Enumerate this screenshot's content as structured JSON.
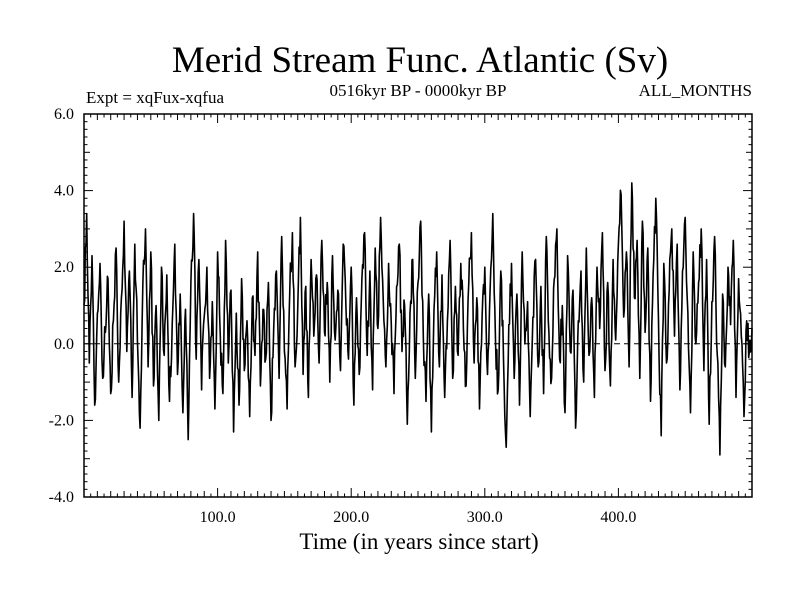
{
  "chart_data": {
    "type": "line",
    "title": "Merid Stream Func. Atlantic (Sv)",
    "subtitle_left": "Expt = xqFux-xqfua",
    "subtitle_center": "0516kyr BP - 0000kyr BP",
    "subtitle_right": "ALL_MONTHS",
    "xlabel": "Time (in years since start)",
    "ylabel": "",
    "xlim": [
      0,
      500
    ],
    "ylim": [
      -4.0,
      6.0
    ],
    "x_ticks": [
      100,
      200,
      300,
      400
    ],
    "x_tick_labels": [
      "100.0",
      "200.0",
      "300.0",
      "400.0"
    ],
    "y_ticks": [
      -4,
      -2,
      0,
      2,
      4,
      6
    ],
    "y_tick_labels": [
      "-4.0",
      "-2.0",
      "0.0",
      "2.0",
      "4.0",
      "6.0"
    ],
    "reference_line": 0.0,
    "anchors": [
      [
        0,
        1.0
      ],
      [
        2,
        3.4
      ],
      [
        4,
        -0.5
      ],
      [
        6,
        2.3
      ],
      [
        8,
        -1.6
      ],
      [
        10,
        0.8
      ],
      [
        12,
        2.1
      ],
      [
        14,
        -0.9
      ],
      [
        16,
        0.3
      ],
      [
        18,
        1.7
      ],
      [
        20,
        -1.3
      ],
      [
        22,
        0.6
      ],
      [
        24,
        2.5
      ],
      [
        26,
        -1.0
      ],
      [
        28,
        1.2
      ],
      [
        30,
        3.2
      ],
      [
        32,
        -0.2
      ],
      [
        34,
        1.9
      ],
      [
        36,
        -1.4
      ],
      [
        38,
        2.6
      ],
      [
        40,
        0.1
      ],
      [
        42,
        -2.2
      ],
      [
        44,
        1.5
      ],
      [
        46,
        3.0
      ],
      [
        48,
        -0.6
      ],
      [
        50,
        2.4
      ],
      [
        52,
        -1.1
      ],
      [
        54,
        1.0
      ],
      [
        56,
        -2.0
      ],
      [
        58,
        2.0
      ],
      [
        60,
        -0.3
      ],
      [
        62,
        1.8
      ],
      [
        64,
        -1.5
      ],
      [
        66,
        0.5
      ],
      [
        68,
        2.6
      ],
      [
        70,
        -0.8
      ],
      [
        72,
        1.3
      ],
      [
        74,
        -1.8
      ],
      [
        76,
        0.9
      ],
      [
        78,
        -2.5
      ],
      [
        80,
        1.6
      ],
      [
        82,
        3.4
      ],
      [
        84,
        -0.4
      ],
      [
        86,
        2.2
      ],
      [
        88,
        -1.2
      ],
      [
        90,
        0.7
      ],
      [
        92,
        2.0
      ],
      [
        94,
        -0.9
      ],
      [
        96,
        1.1
      ],
      [
        98,
        -1.7
      ],
      [
        100,
        2.4
      ],
      [
        102,
        0.2
      ],
      [
        104,
        -1.3
      ],
      [
        106,
        2.7
      ],
      [
        108,
        -0.5
      ],
      [
        110,
        1.4
      ],
      [
        112,
        -2.3
      ],
      [
        114,
        0.8
      ],
      [
        116,
        -1.6
      ],
      [
        118,
        1.7
      ],
      [
        120,
        -0.7
      ],
      [
        122,
        0.6
      ],
      [
        124,
        -1.9
      ],
      [
        126,
        1.2
      ],
      [
        128,
        -0.3
      ],
      [
        130,
        2.4
      ],
      [
        132,
        -1.1
      ],
      [
        134,
        0.9
      ],
      [
        136,
        -0.4
      ],
      [
        138,
        1.6
      ],
      [
        140,
        -2.0
      ],
      [
        142,
        0.4
      ],
      [
        144,
        1.9
      ],
      [
        146,
        -0.9
      ],
      [
        148,
        2.8
      ],
      [
        150,
        -0.2
      ],
      [
        152,
        -1.7
      ],
      [
        154,
        1.3
      ],
      [
        156,
        2.9
      ],
      [
        158,
        -0.6
      ],
      [
        160,
        1.0
      ],
      [
        162,
        3.3
      ],
      [
        164,
        -0.8
      ],
      [
        166,
        1.5
      ],
      [
        168,
        -1.4
      ],
      [
        170,
        2.2
      ],
      [
        172,
        0.2
      ],
      [
        174,
        1.8
      ],
      [
        176,
        -0.5
      ],
      [
        178,
        2.7
      ],
      [
        180,
        0.3
      ],
      [
        182,
        1.6
      ],
      [
        184,
        -1.0
      ],
      [
        186,
        2.3
      ],
      [
        188,
        0.1
      ],
      [
        190,
        1.4
      ],
      [
        192,
        -0.7
      ],
      [
        194,
        2.6
      ],
      [
        196,
        1.0
      ],
      [
        198,
        -0.4
      ],
      [
        200,
        2.0
      ],
      [
        202,
        -1.6
      ],
      [
        204,
        1.2
      ],
      [
        206,
        -0.8
      ],
      [
        208,
        1.7
      ],
      [
        210,
        2.9
      ],
      [
        212,
        -0.3
      ],
      [
        214,
        1.9
      ],
      [
        216,
        -1.2
      ],
      [
        218,
        2.5
      ],
      [
        220,
        0.4
      ],
      [
        222,
        3.3
      ],
      [
        224,
        1.1
      ],
      [
        226,
        -0.6
      ],
      [
        228,
        2.1
      ],
      [
        230,
        0.5
      ],
      [
        232,
        -1.3
      ],
      [
        234,
        1.5
      ],
      [
        236,
        2.6
      ],
      [
        238,
        -0.2
      ],
      [
        240,
        1.0
      ],
      [
        242,
        -2.1
      ],
      [
        244,
        0.8
      ],
      [
        246,
        2.2
      ],
      [
        248,
        -0.9
      ],
      [
        250,
        1.6
      ],
      [
        252,
        3.2
      ],
      [
        254,
        0.2
      ],
      [
        256,
        -1.5
      ],
      [
        258,
        1.3
      ],
      [
        260,
        -2.3
      ],
      [
        262,
        0.9
      ],
      [
        264,
        2.4
      ],
      [
        266,
        -0.6
      ],
      [
        268,
        1.8
      ],
      [
        270,
        -1.4
      ],
      [
        272,
        0.6
      ],
      [
        274,
        2.7
      ],
      [
        276,
        -0.9
      ],
      [
        278,
        1.5
      ],
      [
        280,
        -0.3
      ],
      [
        282,
        2.1
      ],
      [
        284,
        0.4
      ],
      [
        286,
        -1.1
      ],
      [
        288,
        1.6
      ],
      [
        290,
        2.9
      ],
      [
        292,
        -0.5
      ],
      [
        294,
        1.2
      ],
      [
        296,
        -1.7
      ],
      [
        298,
        0.7
      ],
      [
        300,
        2.0
      ],
      [
        302,
        -0.8
      ],
      [
        304,
        1.4
      ],
      [
        306,
        3.4
      ],
      [
        308,
        0.1
      ],
      [
        310,
        -1.2
      ],
      [
        312,
        1.9
      ],
      [
        314,
        -0.4
      ],
      [
        316,
        -2.7
      ],
      [
        318,
        0.5
      ],
      [
        320,
        2.1
      ],
      [
        322,
        -0.9
      ],
      [
        324,
        1.3
      ],
      [
        326,
        -1.6
      ],
      [
        328,
        2.4
      ],
      [
        330,
        0.0
      ],
      [
        332,
        1.1
      ],
      [
        334,
        -1.9
      ],
      [
        336,
        0.7
      ],
      [
        338,
        2.2
      ],
      [
        340,
        -0.6
      ],
      [
        342,
        1.5
      ],
      [
        344,
        -1.3
      ],
      [
        346,
        2.8
      ],
      [
        348,
        0.3
      ],
      [
        350,
        -0.9
      ],
      [
        352,
        1.7
      ],
      [
        354,
        3.0
      ],
      [
        356,
        -0.4
      ],
      [
        358,
        1.0
      ],
      [
        360,
        -1.8
      ],
      [
        362,
        2.3
      ],
      [
        364,
        -0.2
      ],
      [
        366,
        1.4
      ],
      [
        368,
        -2.2
      ],
      [
        370,
        0.6
      ],
      [
        372,
        1.9
      ],
      [
        374,
        -1.0
      ],
      [
        376,
        2.5
      ],
      [
        378,
        -0.3
      ],
      [
        380,
        1.2
      ],
      [
        382,
        -1.4
      ],
      [
        384,
        2.0
      ],
      [
        386,
        0.4
      ],
      [
        388,
        2.9
      ],
      [
        390,
        -0.7
      ],
      [
        392,
        1.6
      ],
      [
        394,
        -1.1
      ],
      [
        396,
        2.2
      ],
      [
        398,
        0.1
      ],
      [
        400,
        2.6
      ],
      [
        402,
        3.9
      ],
      [
        404,
        0.7
      ],
      [
        406,
        2.4
      ],
      [
        408,
        -0.6
      ],
      [
        410,
        4.2
      ],
      [
        412,
        1.2
      ],
      [
        414,
        2.7
      ],
      [
        416,
        -0.9
      ],
      [
        418,
        3.2
      ],
      [
        420,
        0.3
      ],
      [
        422,
        2.5
      ],
      [
        424,
        -1.5
      ],
      [
        426,
        1.8
      ],
      [
        428,
        3.8
      ],
      [
        430,
        0.6
      ],
      [
        432,
        -2.4
      ],
      [
        434,
        2.1
      ],
      [
        436,
        -0.5
      ],
      [
        438,
        1.4
      ],
      [
        440,
        3.0
      ],
      [
        442,
        0.2
      ],
      [
        444,
        2.6
      ],
      [
        446,
        -1.2
      ],
      [
        448,
        1.9
      ],
      [
        450,
        3.3
      ],
      [
        452,
        0.8
      ],
      [
        454,
        -1.8
      ],
      [
        456,
        2.4
      ],
      [
        458,
        0.0
      ],
      [
        460,
        1.6
      ],
      [
        462,
        3.0
      ],
      [
        464,
        -0.7
      ],
      [
        466,
        2.2
      ],
      [
        468,
        -2.1
      ],
      [
        470,
        1.1
      ],
      [
        472,
        2.8
      ],
      [
        474,
        -0.3
      ],
      [
        476,
        -2.9
      ],
      [
        478,
        1.3
      ],
      [
        480,
        -0.6
      ],
      [
        482,
        2.0
      ],
      [
        484,
        0.5
      ],
      [
        486,
        2.7
      ],
      [
        488,
        -1.4
      ],
      [
        490,
        1.7
      ],
      [
        492,
        0.2
      ],
      [
        494,
        -1.9
      ],
      [
        496,
        0.6
      ],
      [
        498,
        -0.2
      ],
      [
        500,
        0.4
      ]
    ]
  }
}
